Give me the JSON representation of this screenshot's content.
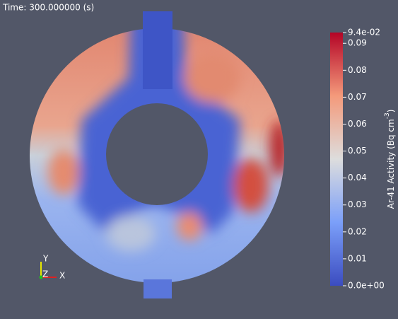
{
  "time_label": "Time: 300.000000 (s)",
  "colorbar": {
    "title": "Ar-41 Activity (Bq cm",
    "title_exponent": "-3",
    "title_end": ")",
    "range": [
      {
        "value": 0,
        "label": "0.0e+00"
      },
      {
        "value": 0.094,
        "label": "9.4e-02"
      }
    ],
    "ticks": [
      0.01,
      0.02,
      0.03,
      0.04,
      0.05,
      0.06,
      0.07,
      0.08,
      0.09
    ]
  },
  "axes": {
    "x": "X",
    "y": "Y",
    "z": "Z"
  }
}
